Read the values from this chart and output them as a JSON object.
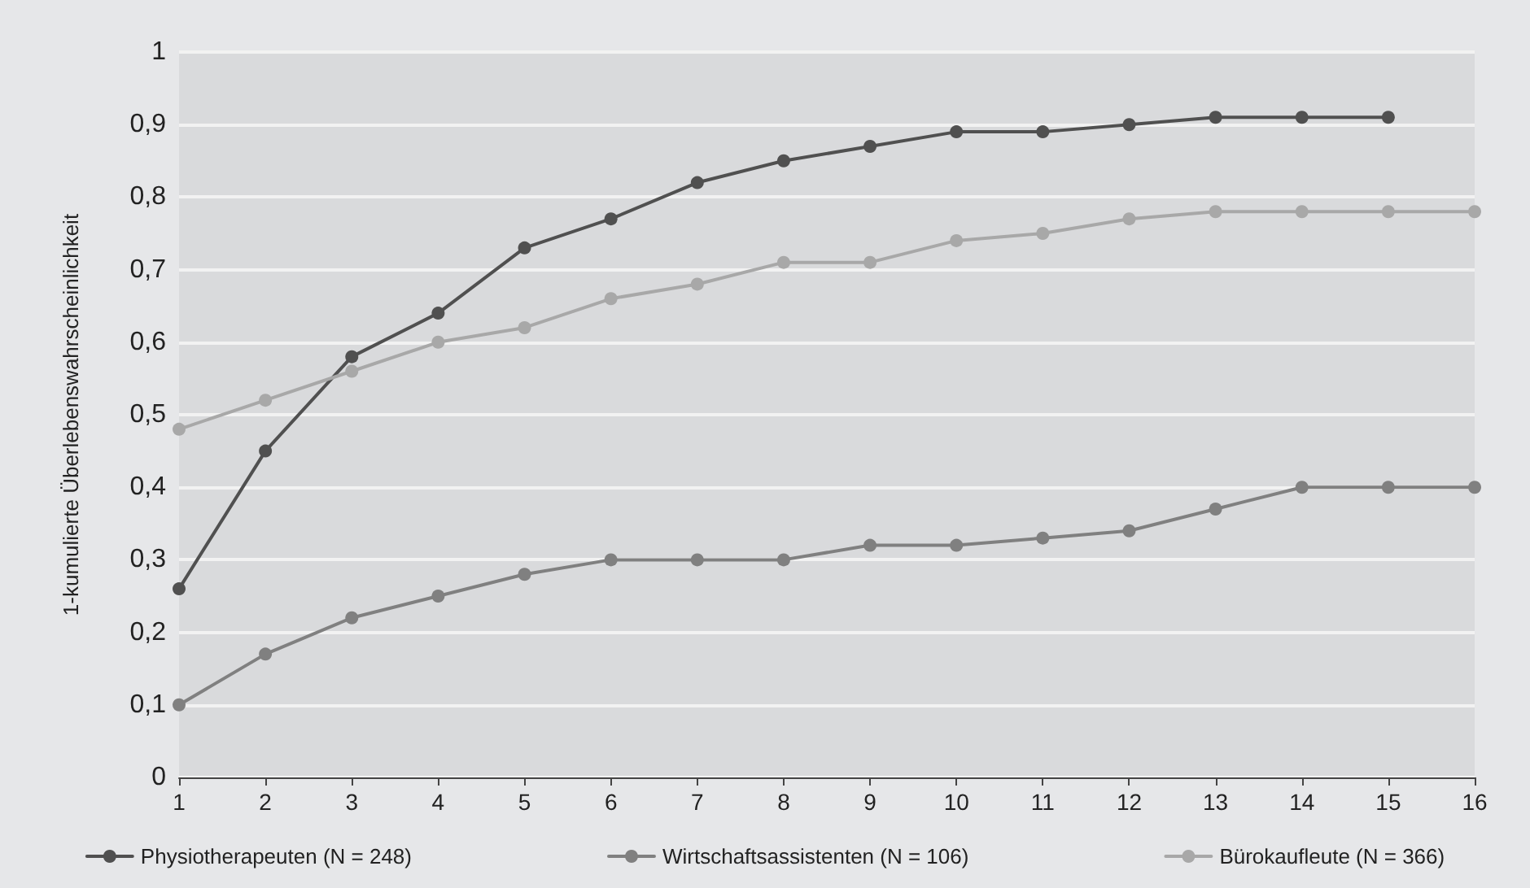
{
  "chart_data": {
    "type": "line",
    "ylabel": "1-kumulierte Überlebenswahrscheinlichkeit",
    "x": [
      1,
      2,
      3,
      4,
      5,
      6,
      7,
      8,
      9,
      10,
      11,
      12,
      13,
      14,
      15,
      16
    ],
    "xlim": [
      1,
      16
    ],
    "xticks": [
      1,
      2,
      3,
      4,
      5,
      6,
      7,
      8,
      9,
      10,
      11,
      12,
      13,
      14,
      15,
      16
    ],
    "ylim": [
      0,
      1
    ],
    "yticks": [
      0,
      {
        "value": 0.1,
        "label": "0,1"
      },
      {
        "value": 0.2,
        "label": "0,2"
      },
      {
        "value": 0.3,
        "label": "0,3"
      },
      {
        "value": 0.4,
        "label": "0,4"
      },
      {
        "value": 0.5,
        "label": "0,5"
      },
      {
        "value": 0.6,
        "label": "0,6"
      },
      {
        "value": 0.7,
        "label": "0,7"
      },
      {
        "value": 0.8,
        "label": "0,8"
      },
      {
        "value": 0.9,
        "label": "0,9"
      },
      1
    ],
    "grid": "y",
    "legend": "bottom",
    "marker": "circle",
    "line_style": "solid",
    "series": [
      {
        "name": "Physiotherapeuten (N = 248)",
        "color": "#505050",
        "values": [
          0.26,
          0.45,
          0.58,
          0.64,
          0.73,
          0.77,
          0.82,
          0.85,
          0.87,
          0.89,
          0.89,
          0.9,
          0.91,
          0.91,
          0.91,
          null
        ]
      },
      {
        "name": "Wirtschaftsassistenten (N = 106)",
        "color": "#808080",
        "values": [
          0.1,
          0.17,
          0.22,
          0.25,
          0.28,
          0.3,
          0.3,
          0.3,
          0.32,
          0.32,
          0.33,
          0.34,
          0.37,
          0.4,
          0.4,
          0.4
        ]
      },
      {
        "name": "Bürokaufleute (N = 366)",
        "color": "#a8a8a8",
        "values": [
          0.48,
          0.52,
          0.56,
          0.6,
          0.62,
          0.66,
          0.68,
          0.71,
          0.71,
          0.74,
          0.75,
          0.77,
          0.78,
          0.78,
          0.78,
          0.78
        ]
      }
    ]
  }
}
